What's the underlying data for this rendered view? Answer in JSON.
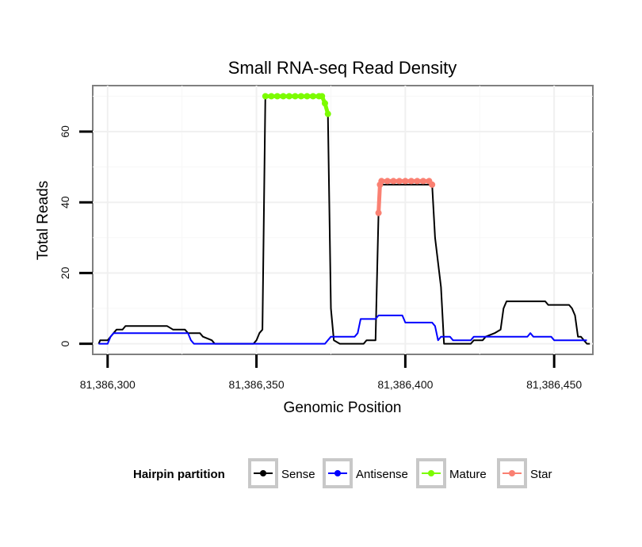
{
  "chart_data": {
    "type": "line",
    "title": "Small RNA-seq Read Density",
    "xlabel": "Genomic Position",
    "ylabel": "Total Reads",
    "xlim": [
      81386295,
      81386463
    ],
    "ylim": [
      -3,
      73
    ],
    "x_ticks": [
      81386300,
      81386350,
      81386400,
      81386450
    ],
    "x_tick_labels": [
      "81,386,300",
      "81,386,350",
      "81,386,400",
      "81,386,450"
    ],
    "y_ticks": [
      0,
      20,
      40,
      60
    ],
    "y_tick_labels": [
      "0",
      "20",
      "40",
      "60"
    ],
    "grid": true,
    "legend": {
      "title": "Hairpin partition",
      "position": "bottom",
      "entries": [
        {
          "name": "Sense",
          "color": "#000000"
        },
        {
          "name": "Antisense",
          "color": "#0000ff"
        },
        {
          "name": "Mature",
          "color": "#7cfc00"
        },
        {
          "name": "Star",
          "color": "#fa8072"
        }
      ]
    },
    "series": [
      {
        "name": "Sense",
        "color": "#000000",
        "points": [
          [
            81386297,
            0
          ],
          [
            81386297.5,
            1
          ],
          [
            81386300,
            1
          ],
          [
            81386301,
            2
          ],
          [
            81386302,
            3
          ],
          [
            81386303,
            4
          ],
          [
            81386305,
            4
          ],
          [
            81386306,
            5
          ],
          [
            81386320,
            5
          ],
          [
            81386322,
            4
          ],
          [
            81386326,
            4
          ],
          [
            81386327,
            3
          ],
          [
            81386331,
            3
          ],
          [
            81386332,
            2
          ],
          [
            81386335,
            1
          ],
          [
            81386336,
            0
          ],
          [
            81386349,
            0
          ],
          [
            81386350,
            1
          ],
          [
            81386351,
            3
          ],
          [
            81386352,
            4
          ],
          [
            81386353,
            70
          ],
          [
            81386372,
            70
          ],
          [
            81386373,
            68
          ],
          [
            81386374,
            65
          ],
          [
            81386375,
            10
          ],
          [
            81386376,
            1
          ],
          [
            81386378,
            0
          ],
          [
            81386386,
            0
          ],
          [
            81386387,
            1
          ],
          [
            81386390,
            1
          ],
          [
            81386391,
            37
          ],
          [
            81386391.5,
            45
          ],
          [
            81386409,
            45
          ],
          [
            81386410,
            30
          ],
          [
            81386412,
            16
          ],
          [
            81386413,
            0
          ],
          [
            81386422,
            0
          ],
          [
            81386423,
            1
          ],
          [
            81386426,
            1
          ],
          [
            81386427,
            2
          ],
          [
            81386430,
            3
          ],
          [
            81386432,
            4
          ],
          [
            81386433,
            10
          ],
          [
            81386434,
            12
          ],
          [
            81386447,
            12
          ],
          [
            81386448,
            11
          ],
          [
            81386455,
            11
          ],
          [
            81386456,
            10
          ],
          [
            81386457,
            8
          ],
          [
            81386458,
            2
          ],
          [
            81386459,
            2
          ],
          [
            81386460,
            1
          ],
          [
            81386461,
            0
          ],
          [
            81386462,
            0
          ]
        ]
      },
      {
        "name": "Antisense",
        "color": "#0000ff",
        "points": [
          [
            81386297,
            0
          ],
          [
            81386300,
            0
          ],
          [
            81386301,
            2
          ],
          [
            81386302,
            3
          ],
          [
            81386327,
            3
          ],
          [
            81386328,
            1
          ],
          [
            81386329,
            0
          ],
          [
            81386373,
            0
          ],
          [
            81386374,
            1
          ],
          [
            81386375,
            2
          ],
          [
            81386383,
            2
          ],
          [
            81386384,
            3
          ],
          [
            81386385,
            7
          ],
          [
            81386390,
            7
          ],
          [
            81386391,
            8
          ],
          [
            81386399,
            8
          ],
          [
            81386400,
            6
          ],
          [
            81386409,
            6
          ],
          [
            81386410,
            5
          ],
          [
            81386411,
            1
          ],
          [
            81386412,
            2
          ],
          [
            81386415,
            2
          ],
          [
            81386416,
            1
          ],
          [
            81386422,
            1
          ],
          [
            81386423,
            2
          ],
          [
            81386441,
            2
          ],
          [
            81386442,
            3
          ],
          [
            81386443,
            2
          ],
          [
            81386449,
            2
          ],
          [
            81386450,
            1
          ],
          [
            81386461,
            1
          ]
        ]
      },
      {
        "name": "Mature",
        "color": "#7cfc00",
        "points": [
          [
            81386353,
            70
          ],
          [
            81386355,
            70
          ],
          [
            81386357,
            70
          ],
          [
            81386359,
            70
          ],
          [
            81386361,
            70
          ],
          [
            81386363,
            70
          ],
          [
            81386365,
            70
          ],
          [
            81386367,
            70
          ],
          [
            81386369,
            70
          ],
          [
            81386371,
            70
          ],
          [
            81386372,
            70
          ],
          [
            81386373,
            68
          ],
          [
            81386374,
            65
          ]
        ]
      },
      {
        "name": "Star",
        "color": "#fa8072",
        "points": [
          [
            81386391,
            37
          ],
          [
            81386391.5,
            45
          ],
          [
            81386392,
            46
          ],
          [
            81386394,
            46
          ],
          [
            81386396,
            46
          ],
          [
            81386398,
            46
          ],
          [
            81386400,
            46
          ],
          [
            81386402,
            46
          ],
          [
            81386404,
            46
          ],
          [
            81386406,
            46
          ],
          [
            81386408,
            46
          ],
          [
            81386409,
            45
          ]
        ]
      }
    ]
  }
}
